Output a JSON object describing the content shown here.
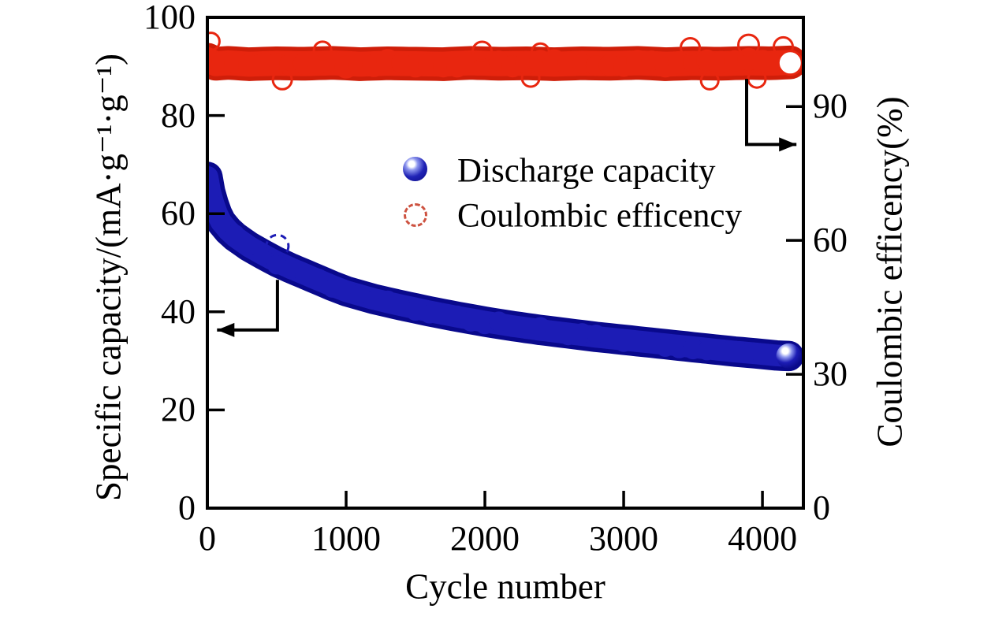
{
  "figure": {
    "background": "#ffffff",
    "frame_color": "#000000",
    "legend": {
      "items": [
        {
          "label": "Discharge capacity",
          "marker": "filled-sphere",
          "color": "#1c1cb5"
        },
        {
          "label": "Coulombic efficency",
          "marker": "open-circle",
          "color": "#e8260f"
        }
      ]
    }
  },
  "chart_data": {
    "type": "scatter",
    "title": "",
    "xlabel": "Cycle number",
    "ylabel_left": "Specific capacity/(mA·g⁻¹·g⁻¹)",
    "ylabel_right": "Coulombic efficency(%)",
    "xlim": [
      0,
      4295
    ],
    "ylim_left": [
      0,
      100
    ],
    "ylim_right": [
      0,
      110
    ],
    "x_ticks": [
      0,
      1000,
      2000,
      3000,
      4000
    ],
    "y_left_ticks": [
      0,
      20,
      40,
      60,
      80,
      100
    ],
    "y_right_ticks": [
      0,
      30,
      60,
      90
    ],
    "grid": false,
    "legend_position": "upper center inside plot",
    "series": [
      {
        "name": "Coulombic efficency",
        "axis": "right",
        "color": "#e8260f",
        "edge_color": "#cf1e09",
        "marker": "open-circle",
        "marker_r": 17,
        "x": [
          1,
          60,
          150,
          300,
          500,
          700,
          900,
          1100,
          1300,
          1500,
          1700,
          1900,
          2100,
          2300,
          2500,
          2700,
          2900,
          3100,
          3300,
          3500,
          3700,
          3900,
          4050,
          4200
        ],
        "y": [
          100.5,
          99.6,
          99.8,
          99.5,
          99.7,
          99.6,
          99.8,
          99.5,
          99.7,
          99.6,
          99.5,
          99.8,
          99.6,
          99.7,
          99.5,
          99.7,
          99.6,
          99.8,
          99.5,
          99.7,
          99.6,
          99.8,
          99.7,
          99.9
        ],
        "noise_pct": 3,
        "open_markers": [
          {
            "x": 25,
            "y": 104.6,
            "r": 11
          },
          {
            "x": 540,
            "y": 96.0,
            "r": 12
          },
          {
            "x": 830,
            "y": 102.6,
            "r": 11
          },
          {
            "x": 1980,
            "y": 102.4,
            "r": 12
          },
          {
            "x": 2330,
            "y": 96.4,
            "r": 11
          },
          {
            "x": 2400,
            "y": 102.2,
            "r": 11
          },
          {
            "x": 3480,
            "y": 103.2,
            "r": 12
          },
          {
            "x": 3620,
            "y": 95.8,
            "r": 11
          },
          {
            "x": 3900,
            "y": 103.8,
            "r": 13
          },
          {
            "x": 3960,
            "y": 96.2,
            "r": 11
          },
          {
            "x": 4150,
            "y": 103.4,
            "r": 12
          },
          {
            "x": 4200,
            "y": 99.8,
            "r": 15,
            "fill": "#ffffff"
          }
        ]
      },
      {
        "name": "Discharge capacity",
        "axis": "left",
        "color": "#1c1cb5",
        "edge_color": "#09098c",
        "marker": "filled-circle",
        "marker_r": 15,
        "x": [
          1,
          20,
          45,
          70,
          100,
          150,
          200,
          300,
          400,
          500,
          600,
          700,
          800,
          900,
          1000,
          1200,
          1400,
          1600,
          1800,
          2000,
          2200,
          2400,
          2600,
          2800,
          3000,
          3200,
          3400,
          3600,
          3800,
          4000,
          4100,
          4190
        ],
        "y": [
          67.5,
          64.5,
          62,
          60,
          58.3,
          56.6,
          55.3,
          53.3,
          51.7,
          50.2,
          48.9,
          47.7,
          46.5,
          45.3,
          44.2,
          42.6,
          41.3,
          40.1,
          39,
          38,
          37.1,
          36.3,
          35.6,
          34.9,
          34.3,
          33.7,
          33.1,
          32.5,
          31.9,
          31.4,
          31.1,
          31
        ],
        "open_markers": [
          {
            "x": 505,
            "y": 53.4,
            "r": 14,
            "dash": true
          }
        ],
        "end_marker": {
          "x": 4190,
          "y": 31,
          "r": 16,
          "style": "sphere"
        }
      }
    ],
    "annotations": [
      {
        "type": "elbow-arrow",
        "axis": "left",
        "points_to": "Discharge capacity (left axis)",
        "x": [
          505,
          505,
          70
        ],
        "y": [
          46.5,
          36.3,
          36.3
        ],
        "head": "left"
      },
      {
        "type": "elbow-arrow",
        "axis": "right",
        "points_to": "Coulombic efficency (right axis)",
        "x": [
          3886,
          3886,
          4245
        ],
        "y": [
          96.2,
          81.5,
          81.5
        ],
        "head": "right"
      }
    ]
  }
}
